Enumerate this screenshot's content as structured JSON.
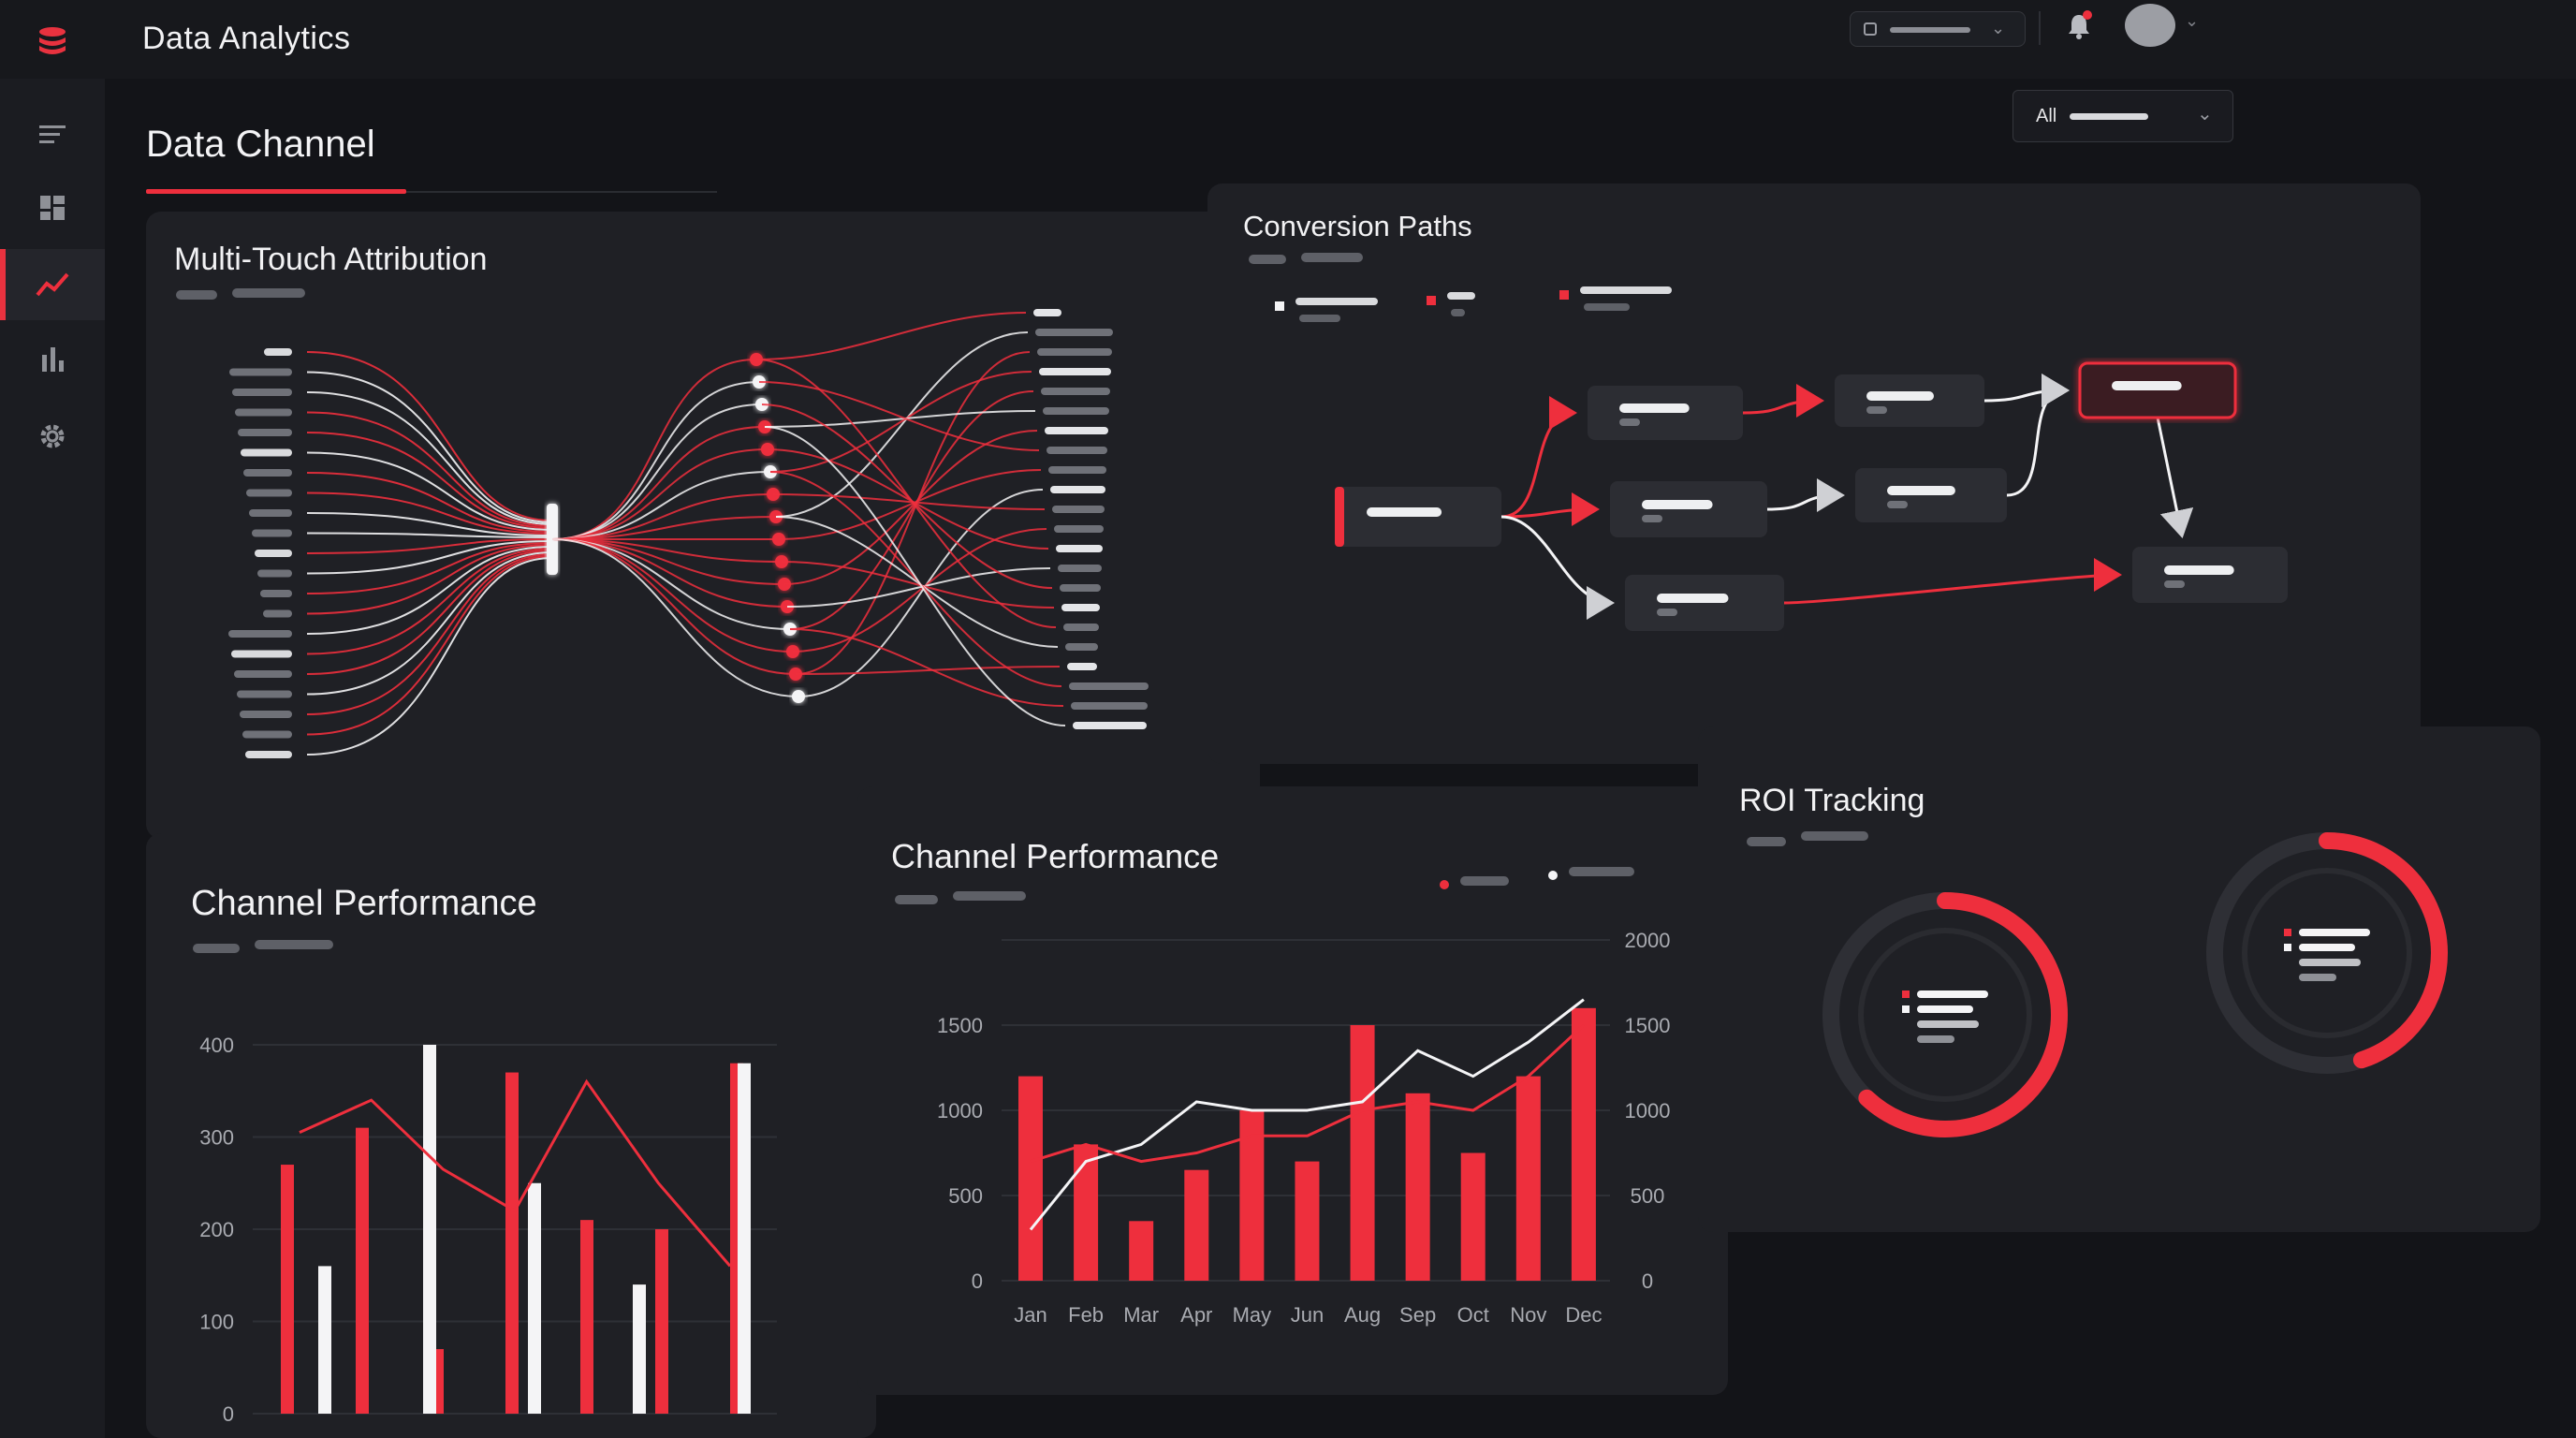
{
  "app": {
    "title": "Data Analytics"
  },
  "header": {
    "page_title": "Data Channel",
    "filter_label": "All"
  },
  "sidebar": {
    "items": [
      {
        "icon": "menu-icon"
      },
      {
        "icon": "dashboard-icon"
      },
      {
        "icon": "trend-icon",
        "active": true
      },
      {
        "icon": "bar-chart-icon"
      },
      {
        "icon": "gear-icon"
      }
    ]
  },
  "cards": {
    "attribution": {
      "title": "Multi-Touch Attribution"
    },
    "conversion": {
      "title": "Conversion Paths"
    },
    "channel_left": {
      "title": "Channel Performance"
    },
    "channel_mid": {
      "title": "Channel Performance"
    },
    "roi": {
      "title": "ROI Tracking"
    }
  },
  "colors": {
    "accent": "#ee2f3d",
    "background": "#131418",
    "card": "#1f2025",
    "white": "#f4f4f6"
  },
  "chart_data": [
    {
      "type": "bar",
      "ylim": [
        0,
        400
      ],
      "yticks": [
        0,
        100,
        200,
        300,
        400
      ],
      "series": [
        {
          "values": [
            270,
            310,
            70,
            370,
            210,
            200,
            380
          ]
        },
        {
          "values": [
            160,
            400,
            250,
            140,
            380
          ]
        },
        {
          "values": [
            305,
            340,
            265,
            220,
            360,
            250,
            160
          ]
        }
      ]
    },
    {
      "type": "bar",
      "categories": [
        "Jan",
        "Feb",
        "Mar",
        "Apr",
        "May",
        "Jun",
        "Aug",
        "Sep",
        "Oct",
        "Nov",
        "Dec"
      ],
      "ylim": [
        0,
        2000
      ],
      "yticks_left": [
        0,
        500,
        1000,
        1500
      ],
      "yticks_right": [
        0,
        500,
        1000,
        1500,
        2000
      ],
      "series": [
        {
          "values": [
            1200,
            800,
            350,
            650,
            1000,
            700,
            1500,
            1100,
            750,
            1200,
            1600
          ]
        },
        {
          "values": [
            300,
            700,
            800,
            1050,
            1000,
            1000,
            1050,
            1350,
            1200,
            1400,
            1650
          ]
        },
        {
          "values": [
            700,
            800,
            700,
            750,
            850,
            850,
            1000,
            1050,
            1000,
            1200,
            1500
          ]
        }
      ]
    }
  ]
}
